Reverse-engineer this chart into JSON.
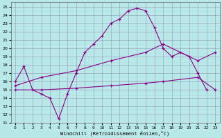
{
  "xlabel": "Windchill (Refroidissement éolien,°C)",
  "xlim": [
    -0.5,
    23.5
  ],
  "ylim": [
    11,
    25.5
  ],
  "yticks": [
    11,
    12,
    13,
    14,
    15,
    16,
    17,
    18,
    19,
    20,
    21,
    22,
    23,
    24,
    25
  ],
  "xticks": [
    0,
    1,
    2,
    3,
    4,
    5,
    6,
    7,
    8,
    9,
    10,
    11,
    12,
    13,
    14,
    15,
    16,
    17,
    18,
    19,
    20,
    21,
    22,
    23
  ],
  "bg_color": "#b8e8e8",
  "line_color": "#880088",
  "grid_color": "#9999bb",
  "line1_x": [
    0,
    1,
    2,
    3,
    4,
    5,
    6,
    7,
    8,
    9,
    10,
    11,
    12,
    13,
    14,
    15,
    16,
    17,
    18,
    19,
    20,
    21,
    22
  ],
  "line1_y": [
    16,
    17.8,
    15,
    14.5,
    14,
    11.5,
    14.5,
    17,
    19.5,
    20.5,
    21.5,
    23,
    23.5,
    24.5,
    24.8,
    24.5,
    22.5,
    20,
    19,
    19.5,
    19,
    17,
    15
  ],
  "line2_x": [
    0,
    3,
    7,
    11,
    15,
    17,
    21,
    23
  ],
  "line2_y": [
    15,
    15,
    15.2,
    15.5,
    15.8,
    16,
    16.5,
    15
  ],
  "line3_x": [
    0,
    3,
    7,
    11,
    15,
    17,
    21,
    23
  ],
  "line3_y": [
    15.5,
    16.5,
    17.3,
    18.5,
    19.5,
    20.5,
    18.5,
    19.5
  ]
}
